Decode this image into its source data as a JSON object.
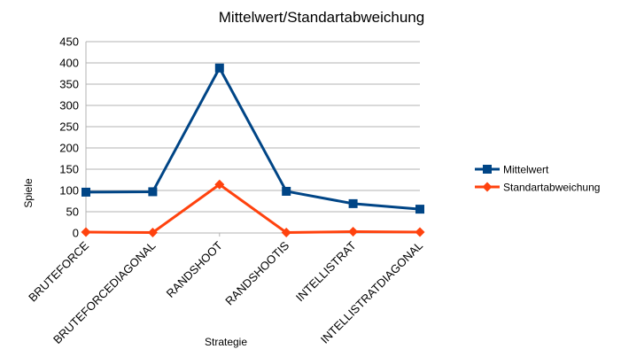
{
  "chart_data": {
    "type": "line",
    "title": "Mittelwert/Standartabweichung",
    "xlabel": "Strategie",
    "ylabel": "Spiele",
    "categories": [
      "BRUTEFORCE",
      "BRUTEFORCEDIAGONAL",
      "RANDSHOOT",
      "RANDSHOOTIS",
      "INTELLISTRAT",
      "INTELLISTRATDIAGONAL"
    ],
    "ylim": [
      0,
      450
    ],
    "yticks": [
      0,
      50,
      100,
      150,
      200,
      250,
      300,
      350,
      400,
      450
    ],
    "grid": "horizontal",
    "legend_position": "right",
    "series": [
      {
        "name": "Mittelwert",
        "values": [
          96,
          97,
          388,
          98,
          69,
          56
        ],
        "color": "#004586",
        "marker": "square"
      },
      {
        "name": "Standartabweichung",
        "values": [
          2,
          1,
          114,
          1,
          3,
          2
        ],
        "color": "#ff420e",
        "marker": "diamond"
      }
    ]
  }
}
